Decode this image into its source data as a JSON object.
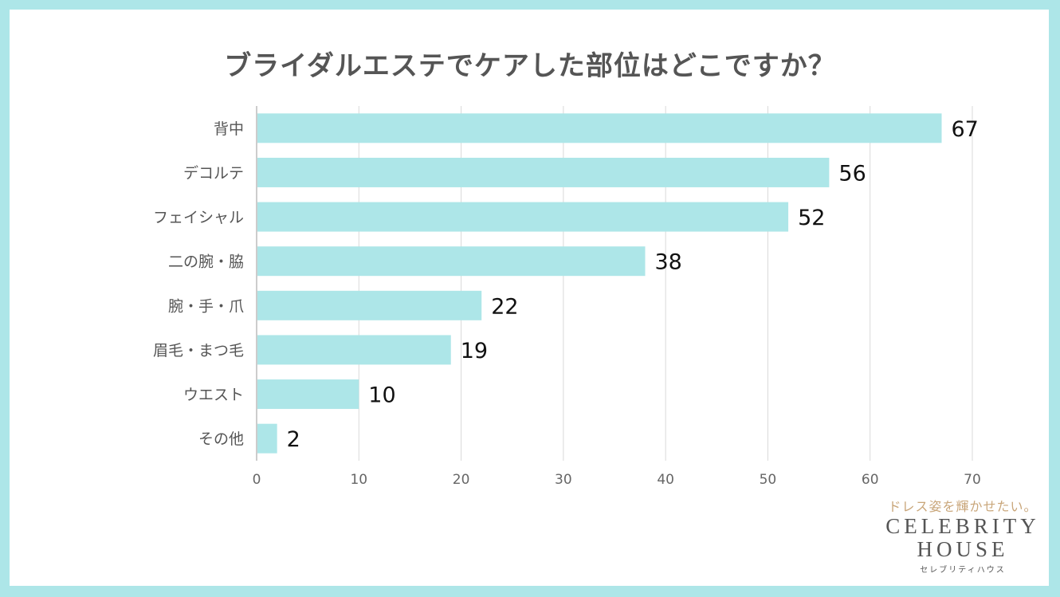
{
  "chart_data": {
    "type": "bar",
    "orientation": "horizontal",
    "title": "ブライダルエステでケアした部位はどこですか？",
    "categories": [
      "背中",
      "デコルテ",
      "フェイシャル",
      "二の腕・脇",
      "腕・手・爪",
      "眉毛・まつ毛",
      "ウエスト",
      "その他"
    ],
    "values": [
      67,
      56,
      52,
      38,
      22,
      19,
      10,
      2
    ],
    "xlim": [
      0,
      70
    ],
    "xticks": [
      0,
      10,
      20,
      30,
      40,
      50,
      60,
      70
    ],
    "xlabel": "",
    "ylabel": "",
    "grid": true,
    "bar_color": "#ade6e8"
  },
  "colors": {
    "frame": "#ade6e8",
    "title": "#555555",
    "category_label": "#555555",
    "value_label": "#111111",
    "tick_label": "#666666",
    "gridline": "#d9d9d9",
    "axis": "#999999"
  },
  "logo": {
    "tagline": "ドレス姿を輝かせたい。",
    "line1": "CELEBRITY",
    "line2": "HOUSE",
    "sub": "セレブリティハウス"
  }
}
